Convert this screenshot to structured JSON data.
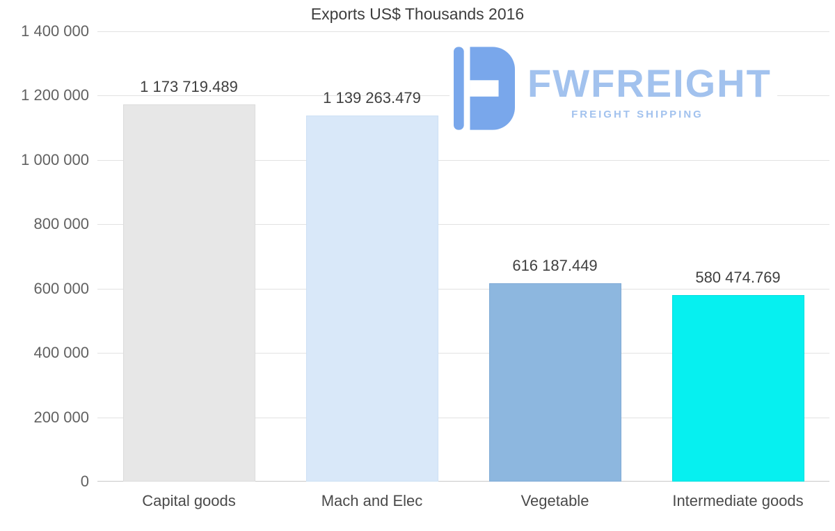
{
  "chart_data": {
    "type": "bar",
    "title": "Exports US$ Thousands 2016",
    "categories": [
      "Capital goods",
      "Mach and Elec",
      "Vegetable",
      "Intermediate goods"
    ],
    "values": [
      1173719.489,
      1139263.479,
      616187.449,
      580474.769
    ],
    "value_labels": [
      "1 173 719.489",
      "1 139 263.479",
      "616 187.449",
      "580 474.769"
    ],
    "bar_colors": [
      "#e7e7e7",
      "#d9e8f9",
      "#8db7df",
      "#06f0f0"
    ],
    "bar_border_colors": [
      "#dcdcdc",
      "#cde0f4",
      "#80abd6",
      "#00dede"
    ],
    "ylim": [
      0,
      1400000
    ],
    "ytick_interval": 200000,
    "ytick_labels": [
      "0",
      "200 000",
      "400 000",
      "600 000",
      "800 000",
      "1 000 000",
      "1 200 000",
      "1 400 000"
    ],
    "grid": true,
    "legend_position": "none",
    "xlabel": "",
    "ylabel": ""
  },
  "watermark": {
    "brand": "FWFREIGHT",
    "tagline": "FREIGHT SHIPPING",
    "color": "#a2c2ee",
    "icon_color": "#79a7eb"
  }
}
